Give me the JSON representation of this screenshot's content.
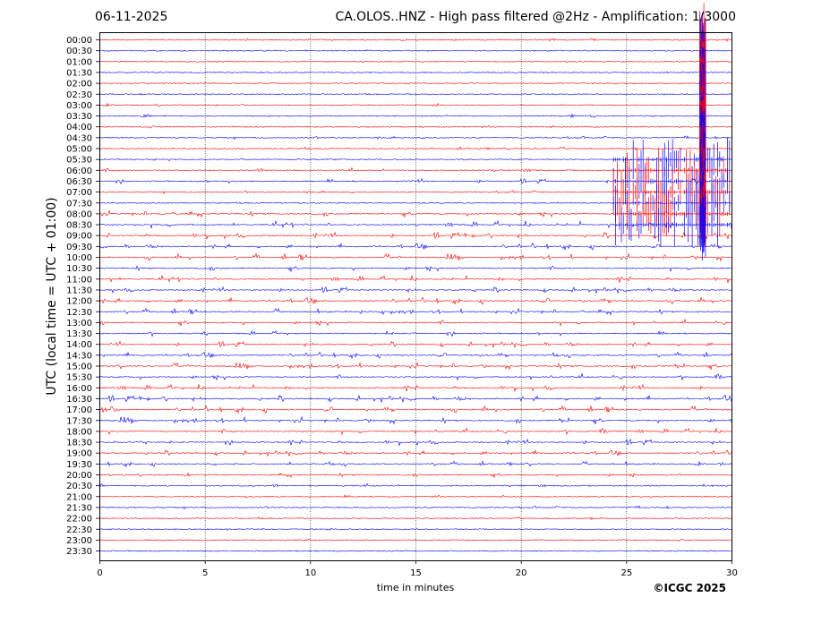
{
  "header": {
    "date": "06-11-2025",
    "title": "CA.OLOS..HNZ - High pass filtered @2Hz - Amplification: 1/3000"
  },
  "credit": "©ICGC 2025",
  "colors": {
    "trace_a": "#ff0000",
    "trace_b": "#0000ff",
    "axes": "#000000",
    "grid": "#000000"
  },
  "chart_data": {
    "type": "line",
    "xlabel": "time in minutes",
    "ylabel": "UTC (local time = UTC + 01:00)",
    "xlim": [
      0,
      30
    ],
    "x_ticks": [
      0,
      5,
      10,
      15,
      20,
      25,
      30
    ],
    "x_tick_labels": [
      "0",
      "5",
      "10",
      "15",
      "20",
      "25",
      "30"
    ],
    "rows": [
      "00:00",
      "00:30",
      "01:00",
      "01:30",
      "02:00",
      "02:30",
      "03:00",
      "03:30",
      "04:00",
      "04:30",
      "05:00",
      "05:30",
      "06:00",
      "06:30",
      "07:00",
      "07:30",
      "08:00",
      "08:30",
      "09:00",
      "09:30",
      "10:00",
      "10:30",
      "11:00",
      "11:30",
      "12:00",
      "12:30",
      "13:00",
      "13:30",
      "14:00",
      "14:30",
      "15:00",
      "15:30",
      "16:00",
      "16:30",
      "17:00",
      "17:30",
      "18:00",
      "18:30",
      "19:00",
      "19:30",
      "20:00",
      "20:30",
      "21:00",
      "21:30",
      "22:00",
      "22:30",
      "23:00",
      "23:30"
    ],
    "row_colors": [
      "red",
      "blue"
    ],
    "activity": [
      0.15,
      0.05,
      0.05,
      0.05,
      0.03,
      0.05,
      0.25,
      0.2,
      0.15,
      0.2,
      0.2,
      0.35,
      0.45,
      0.5,
      0.2,
      0.05,
      0.6,
      0.8,
      0.7,
      0.6,
      0.7,
      0.6,
      0.75,
      0.6,
      0.65,
      0.6,
      0.6,
      0.55,
      0.6,
      0.55,
      0.65,
      0.6,
      0.7,
      0.75,
      0.7,
      0.7,
      0.6,
      0.6,
      0.55,
      0.45,
      0.4,
      0.3,
      0.2,
      0.15,
      0.15,
      0.1,
      0.12,
      0.05
    ],
    "grid": "vertical dotted",
    "events": [
      {
        "start_row": "05:30",
        "end_row": "08:30",
        "x_start": 24.4,
        "x_end": 30,
        "amplitude": "large"
      },
      {
        "start_row": "00:00",
        "end_row": "08:30",
        "x_start": 28.5,
        "x_end": 28.8,
        "amplitude": "very large"
      }
    ]
  }
}
